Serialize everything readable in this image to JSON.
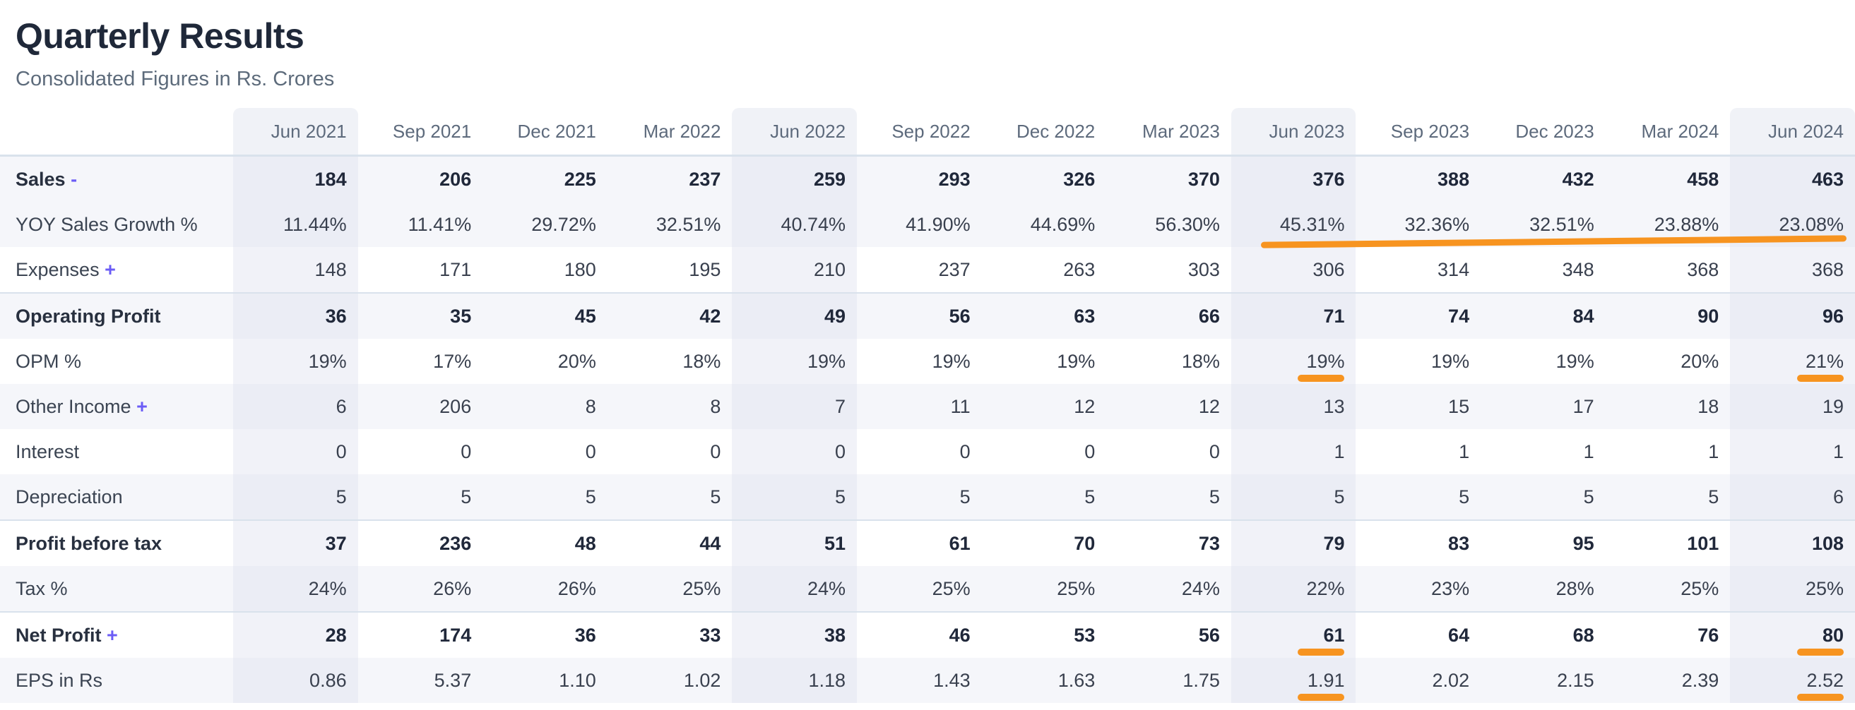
{
  "header": {
    "title": "Quarterly Results",
    "subtitle": "Consolidated Figures in Rs. Crores"
  },
  "table": {
    "columns": [
      "Jun 2021",
      "Sep 2021",
      "Dec 2021",
      "Mar 2022",
      "Jun 2022",
      "Sep 2022",
      "Dec 2022",
      "Mar 2023",
      "Jun 2023",
      "Sep 2023",
      "Dec 2023",
      "Mar 2024",
      "Jun 2024"
    ],
    "highlighted_columns": [
      0,
      4,
      8,
      12
    ],
    "rows": [
      {
        "label": "Sales",
        "suffix": "-",
        "emphasis": true,
        "values": [
          "184",
          "206",
          "225",
          "237",
          "259",
          "293",
          "326",
          "370",
          "376",
          "388",
          "432",
          "458",
          "463"
        ]
      },
      {
        "label": "YOY Sales Growth %",
        "values": [
          "11.44%",
          "11.41%",
          "29.72%",
          "32.51%",
          "40.74%",
          "41.90%",
          "44.69%",
          "56.30%",
          "45.31%",
          "32.36%",
          "32.51%",
          "23.88%",
          "23.08%"
        ]
      },
      {
        "label": "Expenses",
        "suffix": "+",
        "values": [
          "148",
          "171",
          "180",
          "195",
          "210",
          "237",
          "263",
          "303",
          "306",
          "314",
          "348",
          "368",
          "368"
        ]
      },
      {
        "label": "Operating Profit",
        "emphasis": true,
        "values": [
          "36",
          "35",
          "45",
          "42",
          "49",
          "56",
          "63",
          "66",
          "71",
          "74",
          "84",
          "90",
          "96"
        ]
      },
      {
        "label": "OPM %",
        "values": [
          "19%",
          "17%",
          "20%",
          "18%",
          "19%",
          "19%",
          "19%",
          "18%",
          "19%",
          "19%",
          "19%",
          "20%",
          "21%"
        ]
      },
      {
        "label": "Other Income",
        "suffix": "+",
        "values": [
          "6",
          "206",
          "8",
          "8",
          "7",
          "11",
          "12",
          "12",
          "13",
          "15",
          "17",
          "18",
          "19"
        ]
      },
      {
        "label": "Interest",
        "values": [
          "0",
          "0",
          "0",
          "0",
          "0",
          "0",
          "0",
          "0",
          "1",
          "1",
          "1",
          "1",
          "1"
        ]
      },
      {
        "label": "Depreciation",
        "values": [
          "5",
          "5",
          "5",
          "5",
          "5",
          "5",
          "5",
          "5",
          "5",
          "5",
          "5",
          "5",
          "6"
        ]
      },
      {
        "label": "Profit before tax",
        "emphasis": true,
        "values": [
          "37",
          "236",
          "48",
          "44",
          "51",
          "61",
          "70",
          "73",
          "79",
          "83",
          "95",
          "101",
          "108"
        ]
      },
      {
        "label": "Tax %",
        "values": [
          "24%",
          "26%",
          "26%",
          "25%",
          "24%",
          "25%",
          "25%",
          "24%",
          "22%",
          "23%",
          "28%",
          "25%",
          "25%"
        ]
      },
      {
        "label": "Net Profit",
        "suffix": "+",
        "emphasis": true,
        "values": [
          "28",
          "174",
          "36",
          "33",
          "38",
          "46",
          "53",
          "56",
          "61",
          "64",
          "68",
          "76",
          "80"
        ]
      },
      {
        "label": "EPS in Rs",
        "values": [
          "0.86",
          "5.37",
          "1.10",
          "1.02",
          "1.18",
          "1.43",
          "1.63",
          "1.75",
          "1.91",
          "2.02",
          "2.15",
          "2.39",
          "2.52"
        ]
      }
    ]
  },
  "annotations": {
    "color": "#f79420",
    "accent_link_color": "#6b5cf6",
    "underline_cells": [
      {
        "row": 4,
        "col": 8
      },
      {
        "row": 4,
        "col": 12
      },
      {
        "row": 10,
        "col": 8
      },
      {
        "row": 10,
        "col": 12
      },
      {
        "row": 11,
        "col": 8
      },
      {
        "row": 11,
        "col": 12
      }
    ],
    "trend_line": {
      "row": 1,
      "from_col": 8,
      "to_col": 12
    }
  }
}
